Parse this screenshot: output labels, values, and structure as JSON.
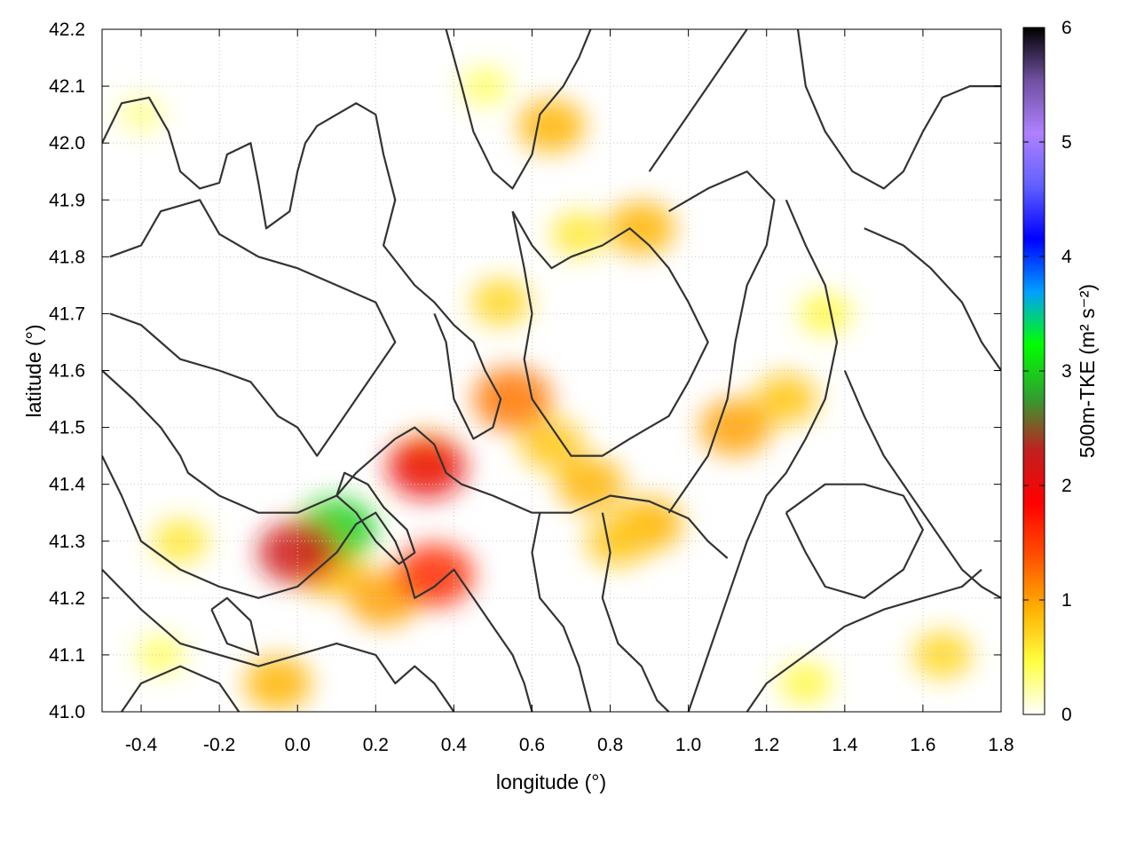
{
  "chart_data": {
    "type": "heatmap",
    "title": "",
    "xlabel": "longitude (°)",
    "ylabel": "latitude (°)",
    "xlim": [
      -0.5,
      1.8
    ],
    "ylim": [
      41.0,
      42.2
    ],
    "x_ticks": [
      -0.4,
      -0.2,
      0.0,
      0.2,
      0.4,
      0.6,
      0.8,
      1.0,
      1.2,
      1.4,
      1.6,
      1.8
    ],
    "x_tick_labels": [
      "-0.4",
      "-0.2",
      "0.0",
      "0.2",
      "0.4",
      "0.6",
      "0.8",
      "1.0",
      "1.2",
      "1.4",
      "1.6",
      "1.8"
    ],
    "y_ticks": [
      41.0,
      41.1,
      41.2,
      41.3,
      41.4,
      41.5,
      41.6,
      41.7,
      41.8,
      41.9,
      42.0,
      42.1,
      42.2
    ],
    "y_tick_labels": [
      "41.0",
      "41.1",
      "41.2",
      "41.3",
      "41.4",
      "41.5",
      "41.6",
      "41.7",
      "41.8",
      "41.9",
      "42.0",
      "42.1",
      "42.2"
    ],
    "grid": true,
    "colorbar": {
      "label": "500m-TKE (m² s⁻²)",
      "range": [
        0,
        6
      ],
      "ticks": [
        0,
        1,
        2,
        3,
        4,
        5,
        6
      ],
      "tick_labels": [
        "0",
        "1",
        "2",
        "3",
        "4",
        "5",
        "6"
      ],
      "colormap": [
        "#ffffff",
        "#ffff40",
        "#ffb000",
        "#ff5000",
        "#ff0000",
        "#c02020",
        "#30a030",
        "#00ff00",
        "#00a0ff",
        "#0000ff",
        "#6060ff",
        "#b080ff",
        "#7050a0",
        "#000000"
      ]
    },
    "field_features": [
      {
        "lon": 0.55,
        "lat": 41.55,
        "tke": 1.2
      },
      {
        "lon": 0.52,
        "lat": 41.72,
        "tke": 0.7
      },
      {
        "lon": 0.65,
        "lat": 41.47,
        "tke": 0.8
      },
      {
        "lon": 0.75,
        "lat": 41.4,
        "tke": 0.9
      },
      {
        "lon": 0.88,
        "lat": 41.85,
        "tke": 0.9
      },
      {
        "lon": 0.72,
        "lat": 41.84,
        "tke": 0.6
      },
      {
        "lon": 1.12,
        "lat": 41.5,
        "tke": 1.0
      },
      {
        "lon": 1.25,
        "lat": 41.55,
        "tke": 0.8
      },
      {
        "lon": 0.9,
        "lat": 41.33,
        "tke": 0.9
      },
      {
        "lon": 0.82,
        "lat": 41.3,
        "tke": 0.8
      },
      {
        "lon": 0.22,
        "lat": 41.2,
        "tke": 1.0
      },
      {
        "lon": 0.08,
        "lat": 41.25,
        "tke": 0.9
      },
      {
        "lon": -0.05,
        "lat": 41.05,
        "tke": 0.9
      },
      {
        "lon": -0.35,
        "lat": 41.1,
        "tke": 0.4
      },
      {
        "lon": -0.3,
        "lat": 41.3,
        "tke": 0.6
      },
      {
        "lon": 0.33,
        "lat": 41.45,
        "tke": 0.7
      },
      {
        "lon": 0.65,
        "lat": 42.03,
        "tke": 0.9
      },
      {
        "lon": 0.48,
        "lat": 42.1,
        "tke": 0.4
      },
      {
        "lon": -0.4,
        "lat": 42.05,
        "tke": 0.3
      },
      {
        "lon": 1.35,
        "lat": 41.7,
        "tke": 0.5
      },
      {
        "lon": 1.65,
        "lat": 41.1,
        "tke": 0.7
      },
      {
        "lon": 1.3,
        "lat": 41.05,
        "tke": 0.5
      },
      {
        "lon": 0.1,
        "lat": 41.32,
        "tke": 3.0
      },
      {
        "lon": 0.0,
        "lat": 41.28,
        "tke": 2.2
      },
      {
        "lon": 0.33,
        "lat": 41.43,
        "tke": 2.0
      },
      {
        "lon": 0.35,
        "lat": 41.24,
        "tke": 1.6
      }
    ],
    "contours": [
      [
        [
          -0.5,
          42.0
        ],
        [
          -0.45,
          42.07
        ],
        [
          -0.38,
          42.08
        ],
        [
          -0.33,
          42.02
        ],
        [
          -0.3,
          41.95
        ],
        [
          -0.25,
          41.92
        ],
        [
          -0.2,
          41.93
        ],
        [
          -0.18,
          41.98
        ],
        [
          -0.12,
          42.0
        ],
        [
          -0.1,
          41.93
        ],
        [
          -0.08,
          41.85
        ],
        [
          -0.02,
          41.88
        ],
        [
          0.0,
          41.95
        ],
        [
          0.02,
          42.0
        ],
        [
          0.05,
          42.03
        ],
        [
          0.1,
          42.05
        ],
        [
          0.15,
          42.07
        ],
        [
          0.2,
          42.05
        ],
        [
          0.22,
          41.98
        ],
        [
          0.25,
          41.9
        ],
        [
          0.22,
          41.82
        ],
        [
          0.3,
          41.75
        ],
        [
          0.35,
          41.72
        ],
        [
          0.4,
          41.68
        ],
        [
          0.45,
          41.65
        ],
        [
          0.48,
          41.6
        ],
        [
          0.52,
          41.55
        ],
        [
          0.5,
          41.5
        ],
        [
          0.45,
          41.48
        ],
        [
          0.4,
          41.55
        ],
        [
          0.38,
          41.65
        ],
        [
          0.35,
          41.7
        ]
      ],
      [
        [
          -0.48,
          41.7
        ],
        [
          -0.4,
          41.68
        ],
        [
          -0.35,
          41.65
        ],
        [
          -0.3,
          41.62
        ],
        [
          -0.2,
          41.6
        ],
        [
          -0.12,
          41.58
        ],
        [
          -0.05,
          41.52
        ],
        [
          0.0,
          41.5
        ],
        [
          0.05,
          41.45
        ],
        [
          0.1,
          41.5
        ],
        [
          0.15,
          41.55
        ],
        [
          0.2,
          41.6
        ],
        [
          0.25,
          41.65
        ],
        [
          0.2,
          41.72
        ],
        [
          0.1,
          41.75
        ],
        [
          0.0,
          41.78
        ],
        [
          -0.1,
          41.8
        ],
        [
          -0.2,
          41.84
        ],
        [
          -0.25,
          41.9
        ],
        [
          -0.35,
          41.88
        ],
        [
          -0.4,
          41.82
        ],
        [
          -0.48,
          41.8
        ]
      ],
      [
        [
          -0.5,
          41.6
        ],
        [
          -0.42,
          41.55
        ],
        [
          -0.35,
          41.5
        ],
        [
          -0.3,
          41.45
        ],
        [
          -0.28,
          41.42
        ],
        [
          -0.2,
          41.38
        ],
        [
          -0.1,
          41.35
        ],
        [
          0.0,
          41.35
        ],
        [
          0.1,
          41.38
        ],
        [
          0.15,
          41.42
        ],
        [
          0.2,
          41.45
        ],
        [
          0.25,
          41.48
        ],
        [
          0.3,
          41.5
        ],
        [
          0.35,
          41.47
        ],
        [
          0.38,
          41.42
        ],
        [
          0.42,
          41.4
        ],
        [
          0.5,
          41.38
        ],
        [
          0.6,
          41.35
        ],
        [
          0.7,
          41.35
        ],
        [
          0.8,
          41.38
        ],
        [
          0.9,
          41.37
        ],
        [
          1.0,
          41.34
        ],
        [
          1.05,
          41.3
        ],
        [
          1.1,
          41.27
        ]
      ],
      [
        [
          -0.5,
          41.45
        ],
        [
          -0.45,
          41.38
        ],
        [
          -0.4,
          41.3
        ],
        [
          -0.3,
          41.25
        ],
        [
          -0.2,
          41.22
        ],
        [
          -0.1,
          41.2
        ],
        [
          0.0,
          41.22
        ],
        [
          0.1,
          41.28
        ],
        [
          0.15,
          41.33
        ],
        [
          0.2,
          41.35
        ],
        [
          0.25,
          41.3
        ],
        [
          0.28,
          41.25
        ],
        [
          0.3,
          41.2
        ],
        [
          0.35,
          41.22
        ],
        [
          0.4,
          41.25
        ],
        [
          0.45,
          41.2
        ],
        [
          0.5,
          41.15
        ],
        [
          0.55,
          41.1
        ],
        [
          0.58,
          41.05
        ],
        [
          0.6,
          41.0
        ]
      ],
      [
        [
          -0.5,
          41.25
        ],
        [
          -0.4,
          41.18
        ],
        [
          -0.3,
          41.12
        ],
        [
          -0.2,
          41.1
        ],
        [
          -0.1,
          41.08
        ],
        [
          0.0,
          41.1
        ],
        [
          0.1,
          41.12
        ],
        [
          0.2,
          41.1
        ],
        [
          0.25,
          41.05
        ],
        [
          0.3,
          41.08
        ],
        [
          0.35,
          41.05
        ],
        [
          0.4,
          41.0
        ]
      ],
      [
        [
          -0.45,
          41.0
        ],
        [
          -0.4,
          41.05
        ],
        [
          -0.3,
          41.08
        ],
        [
          -0.2,
          41.05
        ],
        [
          -0.15,
          41.0
        ]
      ],
      [
        [
          0.38,
          42.2
        ],
        [
          0.42,
          42.1
        ],
        [
          0.45,
          42.02
        ],
        [
          0.5,
          41.95
        ],
        [
          0.55,
          41.92
        ],
        [
          0.6,
          41.98
        ],
        [
          0.62,
          42.05
        ],
        [
          0.68,
          42.1
        ],
        [
          0.72,
          42.15
        ],
        [
          0.75,
          42.2
        ]
      ],
      [
        [
          0.55,
          41.88
        ],
        [
          0.6,
          41.82
        ],
        [
          0.65,
          41.78
        ],
        [
          0.7,
          41.8
        ],
        [
          0.78,
          41.82
        ],
        [
          0.85,
          41.85
        ],
        [
          0.9,
          41.82
        ],
        [
          0.95,
          41.78
        ],
        [
          1.0,
          41.72
        ],
        [
          1.05,
          41.65
        ],
        [
          1.0,
          41.58
        ],
        [
          0.95,
          41.52
        ],
        [
          0.9,
          41.5
        ],
        [
          0.85,
          41.48
        ],
        [
          0.78,
          41.45
        ],
        [
          0.7,
          41.45
        ],
        [
          0.65,
          41.5
        ],
        [
          0.6,
          41.55
        ],
        [
          0.58,
          41.62
        ],
        [
          0.6,
          41.7
        ],
        [
          0.58,
          41.78
        ],
        [
          0.55,
          41.88
        ]
      ],
      [
        [
          0.9,
          41.95
        ],
        [
          0.95,
          42.0
        ],
        [
          1.0,
          42.05
        ],
        [
          1.05,
          42.1
        ],
        [
          1.1,
          42.15
        ],
        [
          1.15,
          42.2
        ]
      ],
      [
        [
          0.95,
          41.88
        ],
        [
          1.05,
          41.92
        ],
        [
          1.15,
          41.95
        ],
        [
          1.22,
          41.9
        ],
        [
          1.2,
          41.82
        ],
        [
          1.15,
          41.75
        ],
        [
          1.12,
          41.65
        ],
        [
          1.1,
          41.55
        ],
        [
          1.05,
          41.45
        ],
        [
          1.0,
          41.4
        ],
        [
          0.95,
          41.35
        ]
      ],
      [
        [
          1.28,
          42.2
        ],
        [
          1.3,
          42.1
        ],
        [
          1.35,
          42.02
        ],
        [
          1.42,
          41.95
        ],
        [
          1.5,
          41.92
        ],
        [
          1.55,
          41.95
        ],
        [
          1.6,
          42.02
        ],
        [
          1.65,
          42.08
        ],
        [
          1.72,
          42.1
        ],
        [
          1.8,
          42.1
        ]
      ],
      [
        [
          1.25,
          41.9
        ],
        [
          1.3,
          41.82
        ],
        [
          1.35,
          41.75
        ],
        [
          1.38,
          41.65
        ],
        [
          1.35,
          41.55
        ],
        [
          1.3,
          41.48
        ],
        [
          1.25,
          41.42
        ],
        [
          1.2,
          41.38
        ],
        [
          1.15,
          41.3
        ],
        [
          1.1,
          41.2
        ],
        [
          1.05,
          41.1
        ],
        [
          1.0,
          41.0
        ]
      ],
      [
        [
          1.45,
          41.85
        ],
        [
          1.55,
          41.82
        ],
        [
          1.62,
          41.78
        ],
        [
          1.7,
          41.72
        ],
        [
          1.75,
          41.65
        ],
        [
          1.8,
          41.6
        ]
      ],
      [
        [
          1.4,
          41.6
        ],
        [
          1.45,
          41.52
        ],
        [
          1.5,
          41.45
        ],
        [
          1.55,
          41.4
        ],
        [
          1.6,
          41.35
        ],
        [
          1.65,
          41.3
        ],
        [
          1.7,
          41.25
        ],
        [
          1.75,
          41.22
        ],
        [
          1.8,
          41.2
        ]
      ],
      [
        [
          1.15,
          41.0
        ],
        [
          1.2,
          41.05
        ],
        [
          1.3,
          41.1
        ],
        [
          1.4,
          41.15
        ],
        [
          1.5,
          41.18
        ],
        [
          1.6,
          41.2
        ],
        [
          1.7,
          41.22
        ],
        [
          1.75,
          41.25
        ]
      ],
      [
        [
          1.25,
          41.35
        ],
        [
          1.3,
          41.28
        ],
        [
          1.35,
          41.22
        ],
        [
          1.45,
          41.2
        ],
        [
          1.55,
          41.25
        ],
        [
          1.6,
          41.32
        ],
        [
          1.55,
          41.38
        ],
        [
          1.45,
          41.4
        ],
        [
          1.35,
          41.4
        ],
        [
          1.25,
          41.35
        ]
      ],
      [
        [
          0.62,
          41.35
        ],
        [
          0.6,
          41.28
        ],
        [
          0.62,
          41.2
        ],
        [
          0.68,
          41.15
        ],
        [
          0.72,
          41.08
        ],
        [
          0.75,
          41.0
        ]
      ],
      [
        [
          0.78,
          41.35
        ],
        [
          0.8,
          41.28
        ],
        [
          0.78,
          41.2
        ],
        [
          0.82,
          41.12
        ],
        [
          0.88,
          41.08
        ],
        [
          0.92,
          41.02
        ],
        [
          0.95,
          41.0
        ]
      ],
      [
        [
          0.1,
          41.38
        ],
        [
          0.12,
          41.42
        ],
        [
          0.18,
          41.4
        ],
        [
          0.22,
          41.36
        ],
        [
          0.28,
          41.32
        ],
        [
          0.3,
          41.28
        ],
        [
          0.26,
          41.26
        ],
        [
          0.2,
          41.3
        ],
        [
          0.15,
          41.35
        ],
        [
          0.1,
          41.38
        ]
      ],
      [
        [
          -0.22,
          41.18
        ],
        [
          -0.18,
          41.12
        ],
        [
          -0.1,
          41.1
        ],
        [
          -0.12,
          41.16
        ],
        [
          -0.18,
          41.2
        ],
        [
          -0.22,
          41.18
        ]
      ]
    ]
  }
}
